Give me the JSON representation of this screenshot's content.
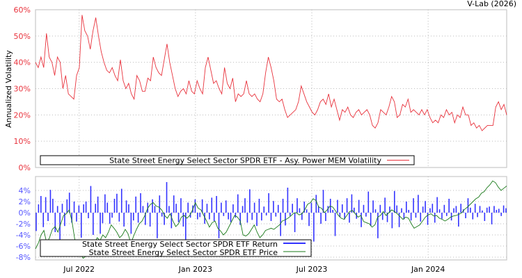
{
  "credit": "V-Lab (2026)",
  "chart_data": [
    {
      "type": "line",
      "ylabel": "Annualized Volatility",
      "ylim": [
        0,
        60
      ],
      "yticks": [
        "0%",
        "10%",
        "20%",
        "30%",
        "40%",
        "50%",
        "60%"
      ],
      "ytick_values": [
        0,
        10,
        20,
        30,
        40,
        50,
        60
      ],
      "grid": true,
      "legend": {
        "placement": "bottom",
        "entries": [
          "State Street Energy Select Sector SPDR ETF - Asy. Power MEM Volatility"
        ]
      },
      "color": "#e8323c",
      "x_range_months": [
        0,
        24.3
      ],
      "xticks": [
        "Jul 2022",
        "Jan 2023",
        "Jul 2023",
        "Jan 2024"
      ],
      "xtick_months": [
        2.25,
        8.25,
        14.25,
        20.25
      ],
      "series": [
        {
          "name": "State Street Energy Select Sector SPDR ETF - Asy. Power MEM Volatility",
          "values": [
            40,
            38,
            42,
            38,
            51,
            42,
            40,
            35,
            42,
            40,
            30,
            35,
            28,
            27,
            26,
            35,
            38,
            58,
            52,
            50,
            45,
            52,
            57,
            50,
            44,
            40,
            37,
            36,
            38,
            35,
            33,
            41,
            33,
            30,
            32,
            28,
            26,
            35,
            33,
            29,
            29,
            34,
            33,
            42,
            38,
            36,
            35,
            41,
            47,
            40,
            35,
            30,
            27,
            29,
            30,
            28,
            33,
            29,
            28,
            33,
            30,
            28,
            38,
            42,
            37,
            32,
            33,
            30,
            28,
            38,
            32,
            30,
            34,
            25,
            28,
            27,
            28,
            33,
            28,
            27,
            28,
            26,
            25,
            28,
            36,
            42,
            38,
            33,
            26,
            25,
            26,
            22,
            19,
            20,
            21,
            22,
            25,
            31,
            28,
            25,
            23,
            21,
            20,
            22,
            25,
            26,
            24,
            28,
            23,
            26,
            22,
            18,
            22,
            21,
            23,
            20,
            19,
            21,
            22,
            20,
            21,
            22,
            20,
            16,
            15,
            17,
            22,
            21,
            20,
            23,
            27,
            25,
            19,
            20,
            24,
            23,
            26,
            21,
            22,
            21,
            20,
            22,
            20,
            22,
            19,
            17,
            18,
            17,
            20,
            19,
            22,
            20,
            21,
            17,
            20,
            19,
            23,
            20,
            20,
            16,
            17,
            15,
            16,
            14,
            15,
            16,
            16,
            16,
            23,
            25,
            22,
            24,
            20
          ]
        }
      ]
    },
    {
      "type": "bar",
      "ylim": [
        -8.5,
        6.5
      ],
      "yticks": [
        "-8%",
        "-6%",
        "-4%",
        "-2%",
        "0%",
        "2%",
        "4%"
      ],
      "ytick_values": [
        -8,
        -6,
        -4,
        -2,
        0,
        2,
        4
      ],
      "grid": true,
      "xticks": [
        "Jul 2022",
        "Jan 2023",
        "Jul 2023",
        "Jan 2024"
      ],
      "xtick_months": [
        2.25,
        8.25,
        14.25,
        20.25
      ],
      "legend": {
        "placement": "bottom-left",
        "entries": [
          "State Street Energy Select Sector SPDR ETF Return",
          "State Street Energy Select Sector SPDR ETF Price"
        ]
      },
      "return_color": "#3333ff",
      "price_color": "#1a7a1a",
      "series": [
        {
          "name": "State Street Energy Select Sector SPDR ETF Return",
          "values": [
            -3.3,
            1.5,
            3,
            -2.6,
            2.8,
            -1.5,
            4.1,
            2.5,
            -3.5,
            1.2,
            -7.6,
            1.6,
            -2.4,
            2.4,
            3.6,
            -1.8,
            2,
            -1.6,
            1.3,
            -4.5,
            1.5,
            2,
            -1,
            4.8,
            -4,
            1.6,
            2.9,
            -3.8,
            -1.9,
            3.3,
            1.8,
            -2,
            -0.9,
            2.5,
            3.4,
            -1.6,
            4.3,
            -2.5,
            2.2,
            1.5,
            -3.8,
            -1.4,
            2.9,
            -1.8,
            3.5,
            1.2,
            -2.2,
            1.8,
            -2.5,
            2.4,
            1.2,
            -4.6,
            3.1,
            -0.7,
            -2.2,
            5.5,
            1.2,
            -2.8,
            3.1,
            1.6,
            -1.7,
            2.6,
            -2.5,
            -6,
            1.8,
            -0.9,
            1.3,
            2.4,
            -1.2,
            -0.8,
            2.4,
            -2,
            1.6,
            -1.2,
            2.7,
            -1.5,
            3,
            -4.6,
            1.8,
            -0.6,
            2.2,
            -1.2,
            -1.7,
            1.5,
            -0.9,
            3.3,
            -2.2,
            1.2,
            2.6,
            -1.8,
            4.2,
            -1.3,
            1.8,
            -2.4,
            2.5,
            -1.4,
            1.1,
            -0.5,
            3.5,
            -1.5,
            2.1,
            -0.7,
            1.4,
            -4.2,
            2.5,
            -2.3,
            4.5,
            -0.6,
            1.6,
            -3.5,
            2.6,
            0.8,
            -1.3,
            2,
            0.6,
            -2.4,
            1.8,
            -5.2,
            3.2,
            1.2,
            -2,
            4.1,
            -1.5,
            1.2,
            2.5,
            0.5,
            -4.2,
            2.3,
            -0.8,
            1.5,
            -1.2,
            2.6,
            -1.8,
            3.3,
            0.9,
            -1.1,
            2.3,
            -2.6,
            1.4,
            -0.7,
            3.8,
            -2.4,
            2.2,
            0.6,
            -4.6,
            1.4,
            -1.3,
            2.7,
            -1.7,
            1.1,
            -2.8,
            3.9,
            1.3,
            -2.6,
            0.8,
            -1.2,
            2,
            0.5,
            -1.4,
            2.6,
            -0.9,
            3.2,
            -1.6,
            1.1,
            2.1,
            -2.2,
            0.8,
            1.6,
            -1.8,
            2.8,
            0.6,
            -1.1,
            1.4,
            -0.6,
            2.5,
            -1.4,
            0.8,
            1.2,
            -2.5,
            1.6,
            0.6,
            -1,
            2.6,
            0.9,
            -1.2,
            1.6,
            -0.8,
            1.2,
            0.4,
            -1.5,
            0.9,
            1.1,
            -2.1,
            1.2,
            0.5,
            0.7,
            -0.6,
            1.3,
            0.8
          ]
        },
        {
          "name": "State Street Energy Select Sector SPDR ETF Price",
          "values": [
            -6.5,
            -5.5,
            -4,
            -3.2,
            -5.5,
            -4.5,
            -3,
            -2.5,
            -3.5,
            -2,
            -0.5,
            -0.2,
            0.5,
            -1.5,
            -4.8,
            -7,
            -7.5,
            -8.2,
            -7.8,
            -7.5,
            -6,
            -5.5,
            -4.5,
            -5,
            -4,
            -4.5,
            -3.5,
            -2.2,
            -2.8,
            -3.5,
            -4.5,
            -4,
            -3,
            -3.8,
            -5.5,
            -4.2,
            -3,
            -2,
            -1.5,
            -0.5,
            0.8,
            1.5,
            1.8,
            1.2,
            1,
            0.5,
            -0.5,
            -1,
            -0.2,
            -1.5,
            -2.5,
            -2,
            -0.8,
            -0.5,
            -1,
            -0.5,
            0.5,
            1.8,
            0.8,
            0.5,
            -0.5,
            -1.5,
            -2.6,
            -1.8,
            -1.5,
            -2.8,
            -3.3,
            -4,
            -3.5,
            -2.5,
            -1.5,
            -0.5,
            -0.8,
            -1.5,
            -4,
            -4.2,
            -3.8,
            -3,
            -2.2,
            -3.5,
            -4.5,
            -4,
            -3.2,
            -3,
            -2.8,
            -3,
            -2.6,
            -2.2,
            -1.5,
            -1.3,
            -1,
            -0.6,
            -0.1,
            0,
            -0.4,
            -0.2,
            0.5,
            1.5,
            1.8,
            2.5,
            2.2,
            1,
            0.8,
            0,
            0.5,
            1.2,
            1,
            0.3,
            -0.5,
            -1,
            -1.2,
            -0.5,
            0.2,
            0.4,
            -0.2,
            -0.8,
            -0.5,
            -1.6,
            -1.8,
            -2,
            -2.6,
            -2.2,
            -0.8,
            -0.5,
            0.2,
            -0.5,
            0,
            0.5,
            0.2,
            -0.2,
            -0.7,
            -1.2,
            -0.8,
            -1,
            -2,
            -2.8,
            -2.5,
            -2.2,
            -1.5,
            -0.8,
            -0.4,
            -0.2,
            -0.6,
            -0.5,
            -1,
            -1.2,
            -1.5,
            -1.2,
            -0.8,
            -0.6,
            -0.5,
            -0.3,
            0,
            0.6,
            1,
            1.5,
            2,
            2.5,
            2.8,
            3.5,
            3.8,
            4.5,
            5,
            5.7,
            5.4,
            4.6,
            4,
            4.4,
            4.8
          ]
        }
      ]
    }
  ]
}
